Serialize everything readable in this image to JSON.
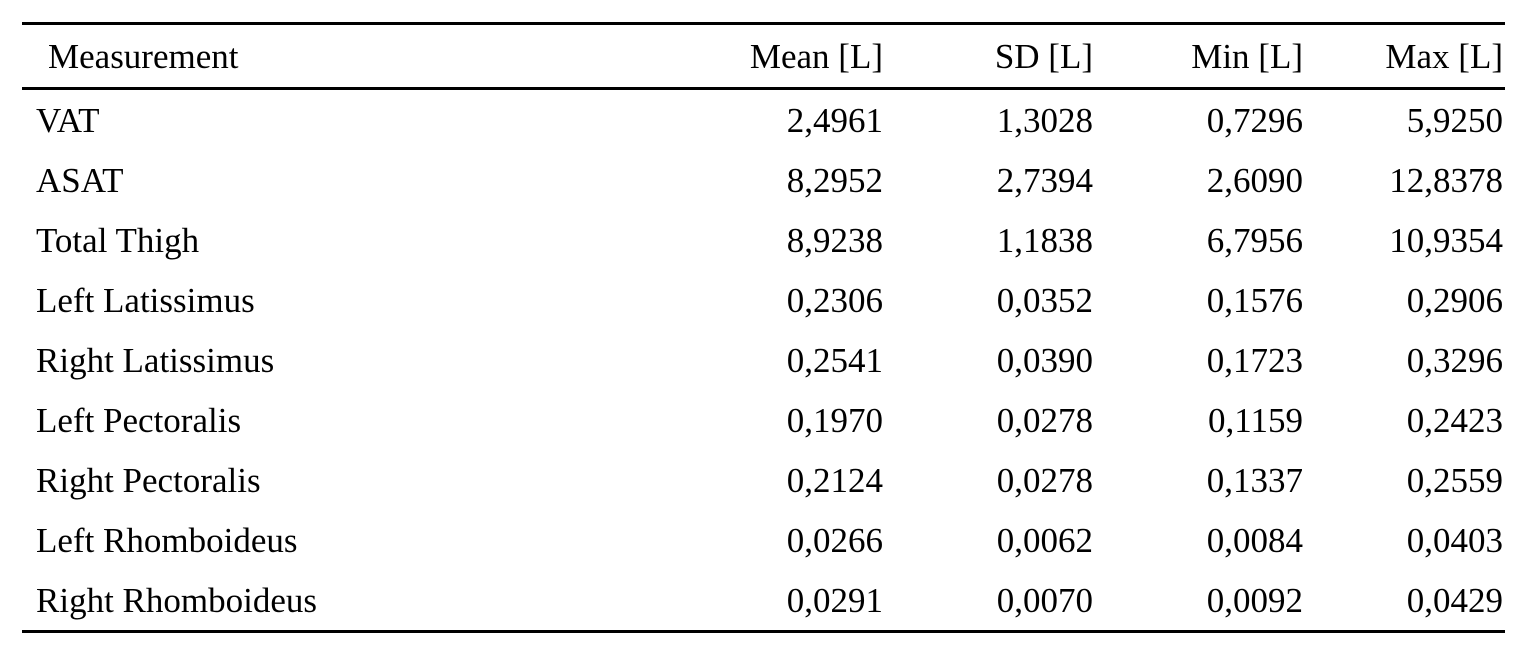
{
  "chart_data": {
    "type": "table",
    "columns": [
      "Measurement",
      "Mean [L]",
      "SD [L]",
      "Min [L]",
      "Max [L]"
    ],
    "unit": "L",
    "decimal_separator": ",",
    "rows": [
      [
        "VAT",
        "2,4961",
        "1,3028",
        "0,7296",
        "5,9250"
      ],
      [
        "ASAT",
        "8,2952",
        "2,7394",
        "2,6090",
        "12,8378"
      ],
      [
        "Total Thigh",
        "8,9238",
        "1,1838",
        "6,7956",
        "10,9354"
      ],
      [
        "Left Latissimus",
        "0,2306",
        "0,0352",
        "0,1576",
        "0,2906"
      ],
      [
        "Right Latissimus",
        "0,2541",
        "0,0390",
        "0,1723",
        "0,3296"
      ],
      [
        "Left Pectoralis",
        "0,1970",
        "0,0278",
        "0,1159",
        "0,2423"
      ],
      [
        "Right Pectoralis",
        "0,2124",
        "0,0278",
        "0,1337",
        "0,2559"
      ],
      [
        "Left Rhomboideus",
        "0,0266",
        "0,0062",
        "0,0084",
        "0,0403"
      ],
      [
        "Right Rhomboideus",
        "0,0291",
        "0,0070",
        "0,0092",
        "0,0429"
      ]
    ]
  },
  "colors": {
    "text": "#000000",
    "background": "#ffffff",
    "rule": "#000000"
  }
}
